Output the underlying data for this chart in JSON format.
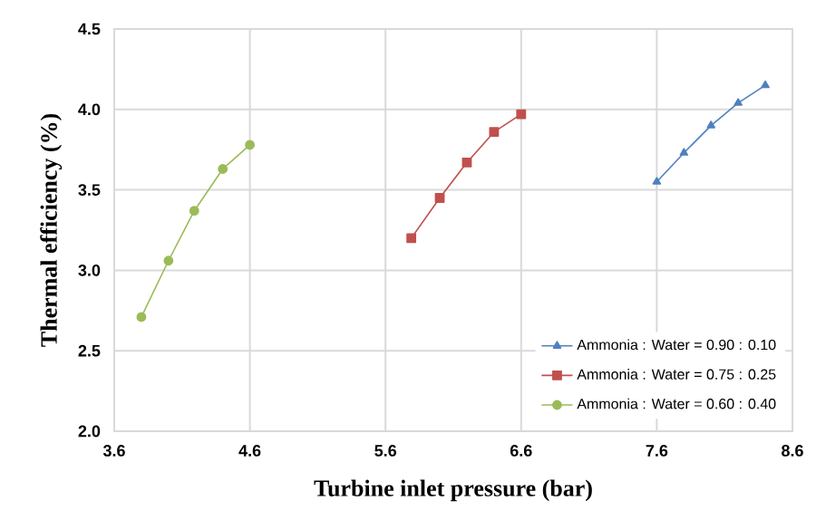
{
  "chart_data": {
    "type": "line",
    "xlabel": "Turbine inlet pressure (bar)",
    "ylabel": "Thermal efficiency (%)",
    "xlim": [
      3.6,
      8.6
    ],
    "xticks": [
      3.6,
      4.6,
      5.6,
      6.6,
      7.6,
      8.6
    ],
    "ylim": [
      2.0,
      4.5
    ],
    "yticks": [
      {
        "value": 2.0,
        "label": "2.0"
      },
      {
        "value": 2.5,
        "label": "2.5"
      },
      {
        "value": 3.0,
        "label": "3.0"
      },
      {
        "value": 3.5,
        "label": "3.5"
      },
      {
        "value": 4.0,
        "label": "4.0"
      },
      {
        "value": 4.5,
        "label": "4.5"
      }
    ],
    "grid": true,
    "legend": "bottom right",
    "line_style": "solid",
    "series": [
      {
        "name": "Ammonia : Water = 0.90 : 0.10",
        "color": "#4f81bd",
        "marker": "triangle",
        "x": [
          7.6,
          7.8,
          8.0,
          8.2,
          8.4
        ],
        "values": [
          3.55,
          3.73,
          3.9,
          4.04,
          4.15
        ]
      },
      {
        "name": "Ammonia : Water = 0.75 : 0.25",
        "color": "#c0504d",
        "marker": "square",
        "x": [
          5.79,
          6.0,
          6.2,
          6.4,
          6.6
        ],
        "values": [
          3.2,
          3.45,
          3.67,
          3.86,
          3.97
        ]
      },
      {
        "name": "Ammonia : Water = 0.60 : 0.40",
        "color": "#9bbb59",
        "marker": "circle",
        "x": [
          3.8,
          4.0,
          4.19,
          4.4,
          4.6
        ],
        "values": [
          2.71,
          3.06,
          3.37,
          3.63,
          3.78
        ]
      }
    ]
  }
}
